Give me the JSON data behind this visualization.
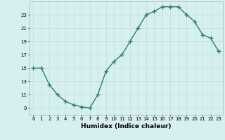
{
  "x": [
    0,
    1,
    2,
    3,
    4,
    5,
    6,
    7,
    8,
    9,
    10,
    11,
    12,
    13,
    14,
    15,
    16,
    17,
    18,
    19,
    20,
    21,
    22,
    23
  ],
  "y": [
    15,
    15,
    12.5,
    11,
    10,
    9.5,
    9.2,
    9,
    11,
    14.5,
    16,
    17,
    19,
    21,
    23,
    23.5,
    24.2,
    24.2,
    24.2,
    23,
    22,
    20,
    19.5,
    17.5
  ],
  "xlabel": "Humidex (Indice chaleur)",
  "ylim": [
    8,
    25
  ],
  "xlim": [
    -0.5,
    23.5
  ],
  "yticks": [
    9,
    11,
    13,
    15,
    17,
    19,
    21,
    23
  ],
  "xticks": [
    0,
    1,
    2,
    3,
    4,
    5,
    6,
    7,
    8,
    9,
    10,
    11,
    12,
    13,
    14,
    15,
    16,
    17,
    18,
    19,
    20,
    21,
    22,
    23
  ],
  "xtick_labels": [
    "0",
    "1",
    "2",
    "3",
    "4",
    "5",
    "6",
    "7",
    "8",
    "9",
    "10",
    "11",
    "12",
    "13",
    "14",
    "15",
    "16",
    "17",
    "18",
    "19",
    "20",
    "21",
    "22",
    "23"
  ],
  "line_color": "#2d7d6f",
  "bg_color": "#d6f0f0",
  "grid_color": "#c0dede",
  "marker": "+",
  "linewidth": 1.0,
  "markersize": 4,
  "xlabel_fontsize": 6.5,
  "tick_fontsize": 5.0
}
